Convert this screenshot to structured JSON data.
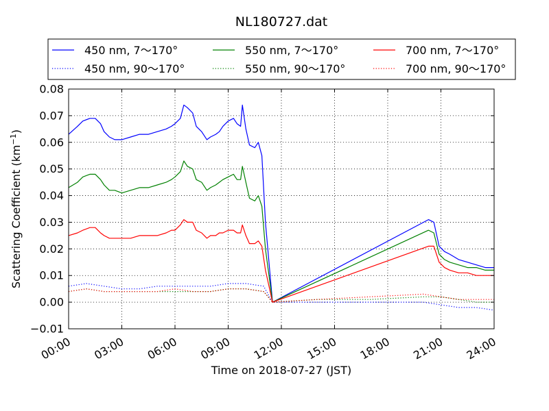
{
  "chart_data": {
    "type": "line",
    "title": "NL180727.dat",
    "xlabel": "Time on 2018-07-27 (JST)",
    "ylabel_main": "Scattering Coefficient (km",
    "ylabel_sup": "−1",
    "ylabel_close": ")",
    "xlim": [
      0,
      24
    ],
    "ylim": [
      -0.01,
      0.08
    ],
    "xticks": [
      {
        "value": 0,
        "label": "00:00"
      },
      {
        "value": 3,
        "label": "03:00"
      },
      {
        "value": 6,
        "label": "06:00"
      },
      {
        "value": 9,
        "label": "09:00"
      },
      {
        "value": 12,
        "label": "12:00"
      },
      {
        "value": 15,
        "label": "15:00"
      },
      {
        "value": 18,
        "label": "18:00"
      },
      {
        "value": 21,
        "label": "21:00"
      },
      {
        "value": 24,
        "label": "24:00"
      }
    ],
    "yticks": [
      {
        "value": -0.01,
        "label": "−0.01"
      },
      {
        "value": 0.0,
        "label": "0.00"
      },
      {
        "value": 0.01,
        "label": "0.01"
      },
      {
        "value": 0.02,
        "label": "0.02"
      },
      {
        "value": 0.03,
        "label": "0.03"
      },
      {
        "value": 0.04,
        "label": "0.04"
      },
      {
        "value": 0.05,
        "label": "0.05"
      },
      {
        "value": 0.06,
        "label": "0.06"
      },
      {
        "value": 0.07,
        "label": "0.07"
      },
      {
        "value": 0.08,
        "label": "0.08"
      }
    ],
    "grid": true,
    "legend_placement": "top, above plot (3 columns)",
    "series": [
      {
        "name": "450 nm, 7～170°",
        "color": "#0000ff",
        "style": "solid",
        "x": [
          0.0,
          0.5,
          0.8,
          1.2,
          1.5,
          1.8,
          2.0,
          2.3,
          2.6,
          3.0,
          3.5,
          4.0,
          4.5,
          5.0,
          5.5,
          5.8,
          6.0,
          6.3,
          6.5,
          6.7,
          7.0,
          7.2,
          7.5,
          7.8,
          8.0,
          8.3,
          8.5,
          8.7,
          9.0,
          9.3,
          9.5,
          9.7,
          9.8,
          10.0,
          10.2,
          10.5,
          10.7,
          10.9,
          11.1,
          11.5,
          20.3,
          20.6,
          20.9,
          21.2,
          21.5,
          22.0,
          22.5,
          23.0,
          23.5,
          24.0
        ],
        "y": [
          0.063,
          0.066,
          0.068,
          0.069,
          0.069,
          0.067,
          0.064,
          0.062,
          0.061,
          0.061,
          0.062,
          0.063,
          0.063,
          0.064,
          0.065,
          0.066,
          0.067,
          0.069,
          0.074,
          0.073,
          0.071,
          0.066,
          0.064,
          0.061,
          0.062,
          0.063,
          0.064,
          0.066,
          0.068,
          0.069,
          0.067,
          0.066,
          0.074,
          0.065,
          0.059,
          0.058,
          0.06,
          0.055,
          0.03,
          0.0,
          0.031,
          0.03,
          0.021,
          0.019,
          0.018,
          0.016,
          0.015,
          0.014,
          0.013,
          0.013
        ]
      },
      {
        "name": "450 nm, 90～170°",
        "color": "#0000ff",
        "style": "dotted",
        "x": [
          0.0,
          1.0,
          2.0,
          3.0,
          4.0,
          5.0,
          6.0,
          7.0,
          8.0,
          9.0,
          10.0,
          11.0,
          11.5,
          14.0,
          17.0,
          20.0,
          21.0,
          22.0,
          23.0,
          24.0
        ],
        "y": [
          0.006,
          0.007,
          0.006,
          0.005,
          0.005,
          0.006,
          0.006,
          0.006,
          0.006,
          0.007,
          0.007,
          0.006,
          0.0,
          0.0,
          0.0,
          0.0,
          -0.001,
          -0.002,
          -0.002,
          -0.003
        ]
      },
      {
        "name": "550 nm, 7～170°",
        "color": "#008000",
        "style": "solid",
        "x": [
          0.0,
          0.5,
          0.8,
          1.2,
          1.5,
          1.8,
          2.0,
          2.3,
          2.6,
          3.0,
          3.5,
          4.0,
          4.5,
          5.0,
          5.5,
          5.8,
          6.0,
          6.3,
          6.5,
          6.7,
          7.0,
          7.2,
          7.5,
          7.8,
          8.0,
          8.3,
          8.5,
          8.7,
          9.0,
          9.3,
          9.5,
          9.7,
          9.8,
          10.0,
          10.2,
          10.5,
          10.7,
          10.9,
          11.1,
          11.5,
          20.3,
          20.6,
          20.9,
          21.2,
          21.5,
          22.0,
          22.5,
          23.0,
          23.5,
          24.0
        ],
        "y": [
          0.043,
          0.045,
          0.047,
          0.048,
          0.048,
          0.046,
          0.044,
          0.042,
          0.042,
          0.041,
          0.042,
          0.043,
          0.043,
          0.044,
          0.045,
          0.046,
          0.047,
          0.049,
          0.053,
          0.051,
          0.05,
          0.046,
          0.045,
          0.042,
          0.043,
          0.044,
          0.045,
          0.046,
          0.047,
          0.048,
          0.046,
          0.046,
          0.051,
          0.045,
          0.039,
          0.038,
          0.04,
          0.036,
          0.02,
          0.0,
          0.027,
          0.026,
          0.018,
          0.016,
          0.015,
          0.014,
          0.013,
          0.013,
          0.012,
          0.012
        ]
      },
      {
        "name": "550 nm, 90～170°",
        "color": "#008000",
        "style": "dotted",
        "x": [
          0.0,
          1.0,
          2.0,
          3.0,
          4.0,
          5.0,
          6.0,
          7.0,
          8.0,
          9.0,
          10.0,
          11.0,
          11.5,
          14.0,
          17.0,
          20.0,
          21.0,
          22.0,
          23.0,
          24.0
        ],
        "y": [
          0.004,
          0.005,
          0.004,
          0.004,
          0.004,
          0.004,
          0.004,
          0.004,
          0.004,
          0.005,
          0.005,
          0.004,
          0.0,
          0.001,
          0.001,
          0.002,
          0.002,
          0.001,
          0.0,
          0.0
        ]
      },
      {
        "name": "700 nm, 7～170°",
        "color": "#ff0000",
        "style": "solid",
        "x": [
          0.0,
          0.5,
          0.8,
          1.2,
          1.5,
          1.8,
          2.0,
          2.3,
          2.6,
          3.0,
          3.5,
          4.0,
          4.5,
          5.0,
          5.5,
          5.8,
          6.0,
          6.3,
          6.5,
          6.7,
          7.0,
          7.2,
          7.5,
          7.8,
          8.0,
          8.3,
          8.5,
          8.7,
          9.0,
          9.3,
          9.5,
          9.7,
          9.8,
          10.0,
          10.2,
          10.5,
          10.7,
          10.9,
          11.1,
          11.5,
          20.3,
          20.6,
          20.9,
          21.2,
          21.5,
          22.0,
          22.5,
          23.0,
          23.5,
          24.0
        ],
        "y": [
          0.025,
          0.026,
          0.027,
          0.028,
          0.028,
          0.026,
          0.025,
          0.024,
          0.024,
          0.024,
          0.024,
          0.025,
          0.025,
          0.025,
          0.026,
          0.027,
          0.027,
          0.029,
          0.031,
          0.03,
          0.03,
          0.027,
          0.026,
          0.024,
          0.025,
          0.025,
          0.026,
          0.026,
          0.027,
          0.027,
          0.026,
          0.026,
          0.029,
          0.025,
          0.022,
          0.022,
          0.023,
          0.021,
          0.012,
          0.0,
          0.021,
          0.021,
          0.015,
          0.013,
          0.012,
          0.011,
          0.011,
          0.01,
          0.01,
          0.01
        ]
      },
      {
        "name": "700 nm, 90～170°",
        "color": "#ff0000",
        "style": "dotted",
        "x": [
          0.0,
          1.0,
          2.0,
          3.0,
          4.0,
          5.0,
          6.0,
          7.0,
          8.0,
          9.0,
          10.0,
          11.0,
          11.5,
          14.0,
          17.0,
          20.0,
          21.0,
          22.0,
          23.0,
          24.0
        ],
        "y": [
          0.004,
          0.005,
          0.004,
          0.004,
          0.004,
          0.004,
          0.005,
          0.004,
          0.004,
          0.005,
          0.005,
          0.004,
          0.0,
          0.001,
          0.002,
          0.003,
          0.002,
          0.001,
          0.001,
          0.001
        ]
      }
    ]
  }
}
